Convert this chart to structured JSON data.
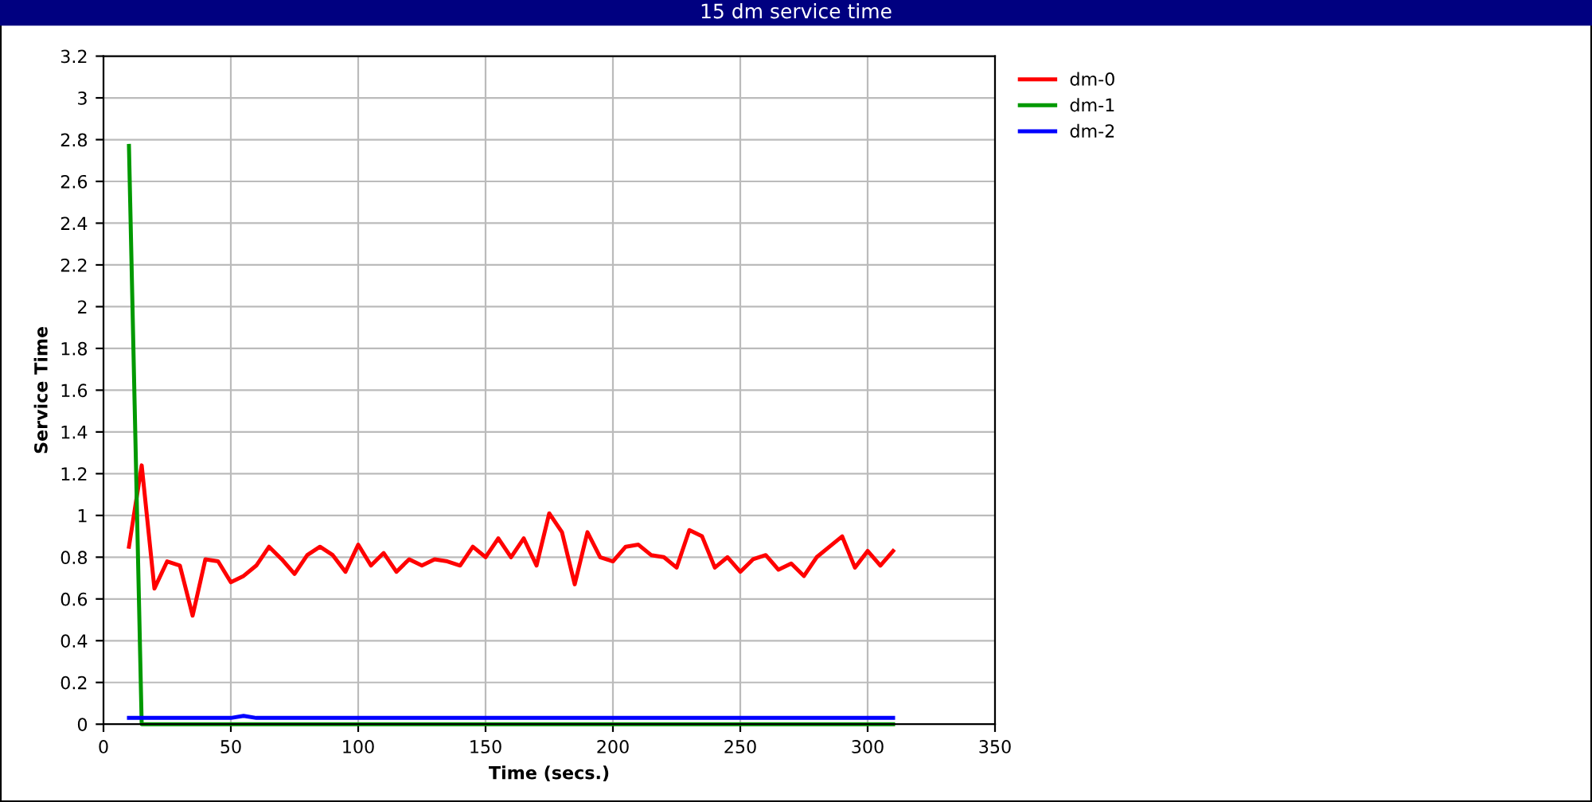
{
  "chart_data": {
    "type": "line",
    "title": "15 dm service time",
    "xlabel": "Time (secs.)",
    "ylabel": "Service Time",
    "xlim": [
      0,
      350
    ],
    "xticks": [
      0,
      50,
      100,
      150,
      200,
      250,
      300,
      350
    ],
    "ylim": [
      0,
      3.2
    ],
    "yticks": [
      0,
      0.2,
      0.4,
      0.6,
      0.8,
      1,
      1.2,
      1.4,
      1.6,
      1.8,
      2,
      2.2,
      2.4,
      2.6,
      2.8,
      3,
      3.2
    ],
    "grid": true,
    "legend": "top right",
    "marker": "none",
    "line_style": "solid",
    "series": [
      {
        "name": "dm-0",
        "color": "#ff0000",
        "x": [
          10,
          15,
          20,
          25,
          30,
          35,
          40,
          45,
          50,
          55,
          60,
          65,
          70,
          75,
          80,
          85,
          90,
          95,
          100,
          105,
          110,
          115,
          120,
          125,
          130,
          135,
          140,
          145,
          150,
          155,
          160,
          165,
          170,
          175,
          180,
          185,
          190,
          195,
          200,
          205,
          210,
          215,
          220,
          225,
          230,
          235,
          240,
          245,
          250,
          255,
          260,
          265,
          270,
          275,
          280,
          285,
          290,
          295,
          300,
          305,
          310
        ],
        "values": [
          0.85,
          1.24,
          0.65,
          0.78,
          0.76,
          0.52,
          0.79,
          0.78,
          0.68,
          0.71,
          0.76,
          0.85,
          0.79,
          0.72,
          0.81,
          0.85,
          0.81,
          0.73,
          0.86,
          0.76,
          0.82,
          0.73,
          0.79,
          0.76,
          0.79,
          0.78,
          0.76,
          0.85,
          0.8,
          0.89,
          0.8,
          0.89,
          0.76,
          1.01,
          0.92,
          0.67,
          0.92,
          0.8,
          0.78,
          0.85,
          0.86,
          0.81,
          0.8,
          0.75,
          0.93,
          0.9,
          0.75,
          0.8,
          0.73,
          0.79,
          0.81,
          0.74,
          0.77,
          0.71,
          0.8,
          0.85,
          0.9,
          0.75,
          0.83,
          0.76,
          0.83
        ]
      },
      {
        "name": "dm-1",
        "color": "#009900",
        "x": [
          10,
          15,
          310
        ],
        "values": [
          2.77,
          0,
          0
        ]
      },
      {
        "name": "dm-2",
        "color": "#0000ff",
        "x": [
          10,
          50,
          55,
          60,
          310
        ],
        "values": [
          0.03,
          0.03,
          0.04,
          0.03,
          0.03
        ]
      }
    ]
  }
}
